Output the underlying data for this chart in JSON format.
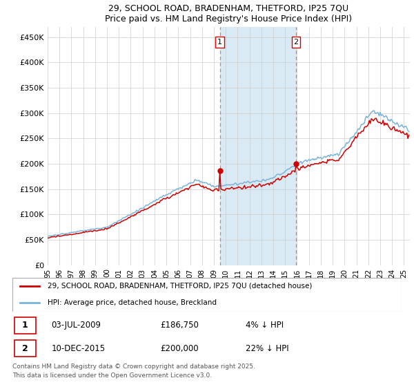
{
  "title_line1": "29, SCHOOL ROAD, BRADENHAM, THETFORD, IP25 7QU",
  "title_line2": "Price paid vs. HM Land Registry's House Price Index (HPI)",
  "ylabel_ticks": [
    "£0",
    "£50K",
    "£100K",
    "£150K",
    "£200K",
    "£250K",
    "£300K",
    "£350K",
    "£400K",
    "£450K"
  ],
  "ytick_vals": [
    0,
    50000,
    100000,
    150000,
    200000,
    250000,
    300000,
    350000,
    400000,
    450000
  ],
  "ylim": [
    0,
    470000
  ],
  "xlim_start": 1995.0,
  "xlim_end": 2025.5,
  "xtick_years": [
    1995,
    1996,
    1997,
    1998,
    1999,
    2000,
    2001,
    2002,
    2003,
    2004,
    2005,
    2006,
    2007,
    2008,
    2009,
    2010,
    2011,
    2012,
    2013,
    2014,
    2015,
    2016,
    2017,
    2018,
    2019,
    2020,
    2021,
    2022,
    2023,
    2024,
    2025
  ],
  "xtick_labels": [
    "95",
    "96",
    "97",
    "98",
    "99",
    "00",
    "01",
    "02",
    "03",
    "04",
    "05",
    "06",
    "07",
    "08",
    "09",
    "10",
    "11",
    "12",
    "13",
    "14",
    "15",
    "16",
    "17",
    "18",
    "19",
    "20",
    "21",
    "22",
    "23",
    "24",
    "25"
  ],
  "sale1_x": 2009.5,
  "sale1_y": 186750,
  "sale2_x": 2015.92,
  "sale2_y": 200000,
  "sale1_date": "03-JUL-2009",
  "sale1_price": "£186,750",
  "sale1_pct": "4% ↓ HPI",
  "sale2_date": "10-DEC-2015",
  "sale2_price": "£200,000",
  "sale2_pct": "22% ↓ HPI",
  "hpi_color": "#7ab3d9",
  "price_color": "#cc0000",
  "shade_color": "#daeaf5",
  "vline_color": "#d08080",
  "legend_label1": "29, SCHOOL ROAD, BRADENHAM, THETFORD, IP25 7QU (detached house)",
  "legend_label2": "HPI: Average price, detached house, Breckland",
  "footer": "Contains HM Land Registry data © Crown copyright and database right 2025.\nThis data is licensed under the Open Government Licence v3.0.",
  "background_color": "#ffffff",
  "grid_color": "#cccccc",
  "marker_box_color": "#cc0000"
}
